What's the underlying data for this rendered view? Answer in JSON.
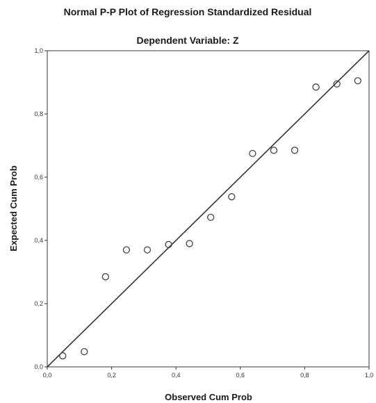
{
  "chart_data": {
    "type": "scatter",
    "title": "Normal P-P Plot of Regression Standardized Residual",
    "subtitle": "Dependent Variable: Z",
    "xlabel": "Observed Cum Prob",
    "ylabel": "Expected Cum Prob",
    "xlim": [
      0,
      1
    ],
    "ylim": [
      0,
      1
    ],
    "x_ticks": [
      "0,0",
      "0,2",
      "0,4",
      "0,6",
      "0,8",
      "1,0"
    ],
    "y_ticks": [
      "0,0",
      "0,2",
      "0,4",
      "0,6",
      "0,8",
      "1,0"
    ],
    "grid": false,
    "reference_line": {
      "from": [
        0,
        0
      ],
      "to": [
        1,
        1
      ]
    },
    "points": [
      {
        "x": 0.048,
        "y": 0.035
      },
      {
        "x": 0.115,
        "y": 0.048
      },
      {
        "x": 0.181,
        "y": 0.285
      },
      {
        "x": 0.246,
        "y": 0.37
      },
      {
        "x": 0.311,
        "y": 0.37
      },
      {
        "x": 0.377,
        "y": 0.387
      },
      {
        "x": 0.442,
        "y": 0.39
      },
      {
        "x": 0.508,
        "y": 0.473
      },
      {
        "x": 0.573,
        "y": 0.538
      },
      {
        "x": 0.638,
        "y": 0.675
      },
      {
        "x": 0.704,
        "y": 0.685
      },
      {
        "x": 0.769,
        "y": 0.685
      },
      {
        "x": 0.835,
        "y": 0.885
      },
      {
        "x": 0.9,
        "y": 0.895
      },
      {
        "x": 0.965,
        "y": 0.905
      }
    ],
    "colors": {
      "point_stroke": "#444444",
      "line": "#333333",
      "axis": "#333333"
    }
  }
}
